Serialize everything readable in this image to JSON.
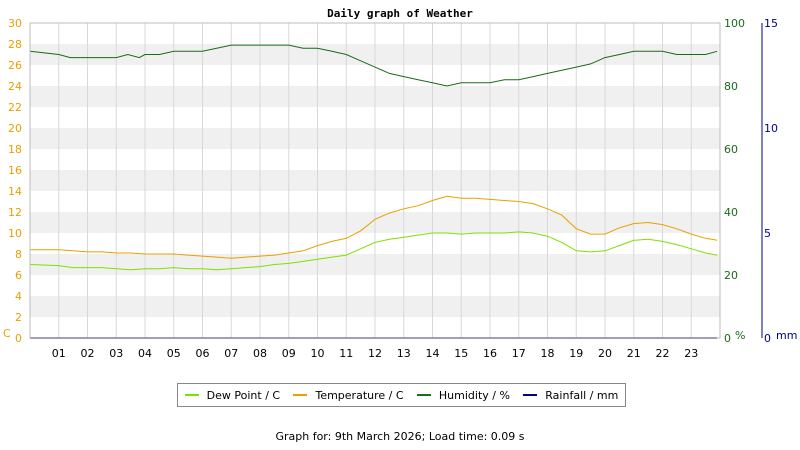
{
  "chart_data": {
    "type": "line",
    "title": "Daily graph of Weather",
    "x_ticks": [
      "01",
      "02",
      "03",
      "04",
      "05",
      "06",
      "07",
      "08",
      "09",
      "10",
      "11",
      "12",
      "13",
      "14",
      "15",
      "16",
      "17",
      "18",
      "19",
      "20",
      "21",
      "22",
      "23"
    ],
    "x_range": [
      0,
      24
    ],
    "grid": true,
    "legend_position": "bottom",
    "axes": {
      "left": {
        "unit": "C",
        "range": [
          0,
          30
        ],
        "ticks": [
          0,
          2,
          4,
          6,
          8,
          10,
          12,
          14,
          16,
          18,
          20,
          22,
          24,
          26,
          28,
          30
        ],
        "color": "#e8a000"
      },
      "right1": {
        "unit": "%",
        "range": [
          0,
          100
        ],
        "ticks": [
          0,
          20,
          40,
          60,
          80,
          100
        ],
        "color": "#1a6b1a"
      },
      "right2": {
        "unit": "mm",
        "range": [
          0,
          15
        ],
        "ticks": [
          0,
          5,
          10,
          15
        ],
        "color": "#00008b"
      }
    },
    "series": [
      {
        "name": "Dew Point / C",
        "axis": "left",
        "color": "#7fe000",
        "x": [
          0,
          1,
          1.5,
          2,
          2.5,
          3,
          3.5,
          4,
          4.5,
          5,
          5.5,
          6,
          6.5,
          7,
          7.5,
          8,
          8.5,
          9,
          9.5,
          10,
          10.5,
          11,
          11.5,
          12,
          12.5,
          13,
          13.5,
          14,
          14.5,
          15,
          15.5,
          16,
          16.5,
          17,
          17.5,
          18,
          18.5,
          19,
          19.5,
          20,
          20.5,
          21,
          21.5,
          22,
          22.5,
          23,
          23.5,
          23.9
        ],
        "y": [
          7.0,
          6.9,
          6.7,
          6.7,
          6.7,
          6.6,
          6.5,
          6.6,
          6.6,
          6.7,
          6.6,
          6.6,
          6.5,
          6.6,
          6.7,
          6.8,
          7.0,
          7.1,
          7.3,
          7.5,
          7.7,
          7.9,
          8.5,
          9.1,
          9.4,
          9.6,
          9.8,
          10.0,
          10.0,
          9.9,
          10.0,
          10.0,
          10.0,
          10.1,
          10.0,
          9.7,
          9.1,
          8.3,
          8.2,
          8.3,
          8.8,
          9.3,
          9.4,
          9.2,
          8.9,
          8.5,
          8.1,
          7.9
        ]
      },
      {
        "name": "Temperature / C",
        "axis": "left",
        "color": "#e8a000",
        "x": [
          0,
          1,
          1.5,
          2,
          2.5,
          3,
          3.5,
          4,
          4.5,
          5,
          5.5,
          6,
          6.5,
          7,
          7.5,
          8,
          8.5,
          9,
          9.5,
          10,
          10.5,
          11,
          11.5,
          12,
          12.5,
          13,
          13.5,
          14,
          14.5,
          15,
          15.5,
          16,
          16.5,
          17,
          17.5,
          18,
          18.5,
          19,
          19.5,
          20,
          20.5,
          21,
          21.5,
          22,
          22.5,
          23,
          23.5,
          23.9
        ],
        "y": [
          8.4,
          8.4,
          8.3,
          8.2,
          8.2,
          8.1,
          8.1,
          8.0,
          8.0,
          8.0,
          7.9,
          7.8,
          7.7,
          7.6,
          7.7,
          7.8,
          7.9,
          8.1,
          8.3,
          8.8,
          9.2,
          9.5,
          10.2,
          11.3,
          11.9,
          12.3,
          12.6,
          13.1,
          13.5,
          13.3,
          13.3,
          13.2,
          13.1,
          13.0,
          12.8,
          12.3,
          11.7,
          10.4,
          9.9,
          9.9,
          10.5,
          10.9,
          11.0,
          10.8,
          10.4,
          9.9,
          9.5,
          9.3
        ]
      },
      {
        "name": "Humidity / %",
        "axis": "right1",
        "color": "#1a6b1a",
        "x": [
          0,
          1,
          1.4,
          2,
          3,
          3.4,
          3.8,
          4,
          4.5,
          5,
          5.5,
          6,
          7,
          7.5,
          8,
          8.5,
          9,
          9.5,
          10,
          10.5,
          11,
          11.5,
          12,
          12.5,
          13,
          13.5,
          14,
          14.5,
          15,
          15.5,
          16,
          16.5,
          17,
          17.5,
          18,
          18.5,
          19,
          19.5,
          20,
          20.5,
          21,
          21.5,
          22,
          22.5,
          23,
          23.5,
          23.9
        ],
        "y": [
          91,
          90,
          89,
          89,
          89,
          90,
          89,
          90,
          90,
          91,
          91,
          91,
          93,
          93,
          93,
          93,
          93,
          92,
          92,
          91,
          90,
          88,
          86,
          84,
          83,
          82,
          81,
          80,
          81,
          81,
          81,
          82,
          82,
          83,
          84,
          85,
          86,
          87,
          89,
          90,
          91,
          91,
          91,
          90,
          90,
          90,
          91
        ]
      },
      {
        "name": "Rainfall / mm",
        "axis": "right2",
        "color": "#00008b",
        "x": [
          0,
          23.9
        ],
        "y": [
          0,
          0
        ]
      }
    ]
  },
  "footer_text": "Graph for: 9th March 2026; Load time: 0.09 s"
}
